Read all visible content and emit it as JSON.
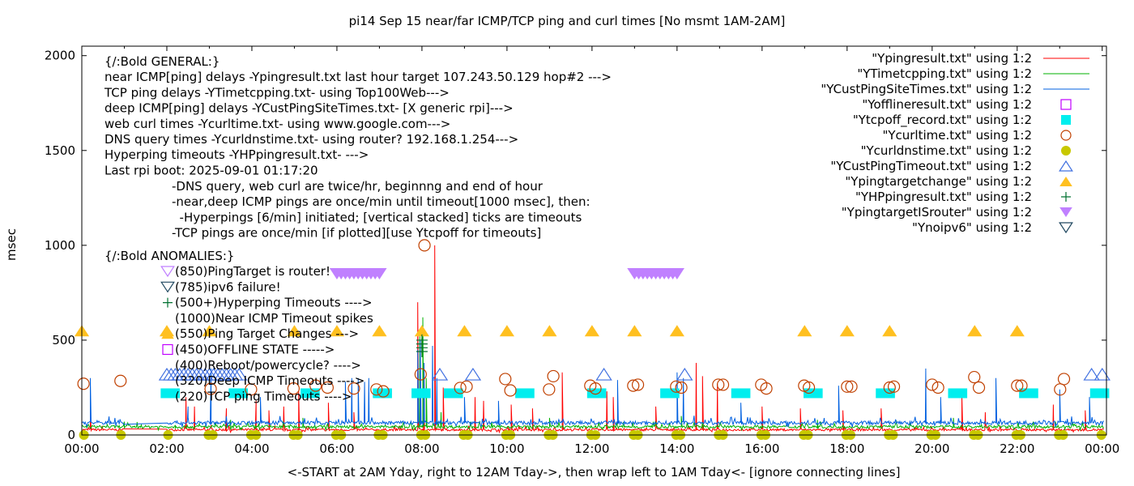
{
  "chart_data": {
    "type": "line",
    "title": "pi14 Sep 15  near/far ICMP/TCP ping and curl times [No msmt 1AM-2AM]",
    "xlabel": "<-START at 2AM Yday, right to 12AM Tday->, then wrap left to 1AM Tday<- [ignore connecting lines]",
    "ylabel": "msec",
    "xlim": [
      0,
      24.1
    ],
    "ylim": [
      0,
      2050
    ],
    "x_unit": "hours",
    "x_ticks": [
      {
        "v": 0,
        "label": "00:00"
      },
      {
        "v": 2,
        "label": "02:00"
      },
      {
        "v": 4,
        "label": "04:00"
      },
      {
        "v": 6,
        "label": "06:00"
      },
      {
        "v": 8,
        "label": "08:00"
      },
      {
        "v": 10,
        "label": "10:00"
      },
      {
        "v": 12,
        "label": "12:00"
      },
      {
        "v": 14,
        "label": "14:00"
      },
      {
        "v": 16,
        "label": "16:00"
      },
      {
        "v": 18,
        "label": "18:00"
      },
      {
        "v": 20,
        "label": "20:00"
      },
      {
        "v": 22,
        "label": "22:00"
      },
      {
        "v": 24,
        "label": "00:00"
      }
    ],
    "y_ticks": [
      {
        "v": 0,
        "label": "0"
      },
      {
        "v": 500,
        "label": "500"
      },
      {
        "v": 1000,
        "label": "1000"
      },
      {
        "v": 1500,
        "label": "1500"
      },
      {
        "v": 2000,
        "label": "2000"
      }
    ],
    "grid": false,
    "legend_placement": "top-right",
    "series": [
      {
        "name": "\"Ypingresult.txt\" using 1:2",
        "style": "line",
        "color": "#ff0000",
        "baseline": 25,
        "jitter": 12,
        "spikes": [
          [
            0.2,
            120
          ],
          [
            2.45,
            200
          ],
          [
            2.65,
            150
          ],
          [
            3.4,
            140
          ],
          [
            4.1,
            180
          ],
          [
            4.4,
            130
          ],
          [
            4.75,
            150
          ],
          [
            5.1,
            230
          ],
          [
            5.8,
            170
          ],
          [
            6.4,
            120
          ],
          [
            7.9,
            700
          ],
          [
            8.05,
            320
          ],
          [
            8.3,
            1000
          ],
          [
            8.5,
            250
          ],
          [
            9.25,
            200
          ],
          [
            9.45,
            180
          ],
          [
            10.1,
            160
          ],
          [
            10.6,
            140
          ],
          [
            11.3,
            330
          ],
          [
            12.35,
            230
          ],
          [
            12.5,
            200
          ],
          [
            13.5,
            150
          ],
          [
            14.45,
            380
          ],
          [
            14.6,
            310
          ],
          [
            14.95,
            270
          ],
          [
            16.0,
            150
          ],
          [
            16.9,
            140
          ],
          [
            17.9,
            130
          ],
          [
            18.8,
            140
          ],
          [
            20.7,
            200
          ],
          [
            21.25,
            120
          ],
          [
            22.85,
            160
          ],
          [
            23.6,
            130
          ]
        ]
      },
      {
        "name": "\"YTimetcpping.txt\" using 1:2",
        "style": "line",
        "color": "#00b000",
        "baseline": 40,
        "jitter": 15,
        "spikes": [
          [
            1.0,
            70
          ],
          [
            1.3,
            60
          ],
          [
            2.2,
            50
          ],
          [
            3.5,
            80
          ],
          [
            5.2,
            90
          ],
          [
            7.95,
            520
          ],
          [
            8.02,
            620
          ],
          [
            8.1,
            300
          ],
          [
            8.45,
            120
          ],
          [
            11.0,
            90
          ],
          [
            14.1,
            100
          ],
          [
            17.3,
            80
          ],
          [
            20.5,
            90
          ],
          [
            22.9,
            70
          ]
        ]
      },
      {
        "name": "\"YCustPingSiteTimes.txt\" using 1:2",
        "style": "line",
        "color": "#0060e0",
        "baseline": 60,
        "jitter": 20,
        "spikes": [
          [
            0.2,
            300
          ],
          [
            2.5,
            150
          ],
          [
            3.04,
            350
          ],
          [
            4.2,
            200
          ],
          [
            6.2,
            280
          ],
          [
            6.35,
            300
          ],
          [
            6.5,
            300
          ],
          [
            6.65,
            280
          ],
          [
            6.75,
            300
          ],
          [
            7.9,
            450
          ],
          [
            7.96,
            500
          ],
          [
            8.05,
            380
          ],
          [
            8.25,
            470
          ],
          [
            8.35,
            300
          ],
          [
            9.0,
            200
          ],
          [
            9.8,
            180
          ],
          [
            12.6,
            290
          ],
          [
            14.0,
            330
          ],
          [
            14.15,
            300
          ],
          [
            15.5,
            170
          ],
          [
            17.8,
            260
          ],
          [
            19.85,
            350
          ],
          [
            20.2,
            200
          ],
          [
            21.5,
            300
          ],
          [
            23.0,
            240
          ],
          [
            23.7,
            200
          ]
        ]
      }
    ],
    "points": [
      {
        "name": "\"Yofflineresult.txt\" using 1:2",
        "marker": "open-square",
        "color": "#c000ff",
        "points": []
      },
      {
        "name": "\"Ytcpoff_record.txt\" using 1:2",
        "marker": "filled-square",
        "color": "#00eeee",
        "run_width_hours": 0.45,
        "points": [
          [
            2.08,
            220
          ],
          [
            3.68,
            220
          ],
          [
            5.37,
            220
          ],
          [
            7.07,
            220
          ],
          [
            7.98,
            220
          ],
          [
            8.74,
            220
          ],
          [
            10.42,
            220
          ],
          [
            12.11,
            220
          ],
          [
            13.83,
            220
          ],
          [
            15.5,
            220
          ],
          [
            17.2,
            220
          ],
          [
            18.9,
            220
          ],
          [
            20.6,
            220
          ],
          [
            22.27,
            220
          ],
          [
            23.94,
            220
          ]
        ]
      },
      {
        "name": "\"Ycurltime.txt\" using 1:2",
        "marker": "open-circle",
        "color": "#c04000",
        "points": [
          [
            0.04,
            270
          ],
          [
            0.91,
            285
          ],
          [
            3.03,
            243
          ],
          [
            3.98,
            240
          ],
          [
            4.98,
            245
          ],
          [
            5.5,
            260
          ],
          [
            5.78,
            250
          ],
          [
            6.4,
            245
          ],
          [
            6.93,
            240
          ],
          [
            7.09,
            230
          ],
          [
            7.97,
            320
          ],
          [
            8.06,
            1000
          ],
          [
            8.9,
            248
          ],
          [
            9.05,
            255
          ],
          [
            9.96,
            295
          ],
          [
            10.08,
            235
          ],
          [
            10.99,
            240
          ],
          [
            11.09,
            310
          ],
          [
            11.96,
            260
          ],
          [
            12.08,
            245
          ],
          [
            12.97,
            260
          ],
          [
            13.08,
            265
          ],
          [
            13.98,
            255
          ],
          [
            14.1,
            250
          ],
          [
            14.97,
            265
          ],
          [
            15.08,
            265
          ],
          [
            15.98,
            265
          ],
          [
            16.1,
            245
          ],
          [
            16.99,
            260
          ],
          [
            17.1,
            250
          ],
          [
            18.0,
            255
          ],
          [
            18.1,
            255
          ],
          [
            19.0,
            250
          ],
          [
            19.1,
            255
          ],
          [
            20.0,
            265
          ],
          [
            20.14,
            250
          ],
          [
            20.99,
            305
          ],
          [
            21.1,
            250
          ],
          [
            22.0,
            260
          ],
          [
            22.1,
            260
          ],
          [
            23.01,
            240
          ],
          [
            23.1,
            295
          ]
        ]
      },
      {
        "name": "\"Ycurldnstime.txt\" using 1:2",
        "marker": "filled-circle",
        "color": "#c8c800",
        "points": [
          [
            0.05,
            0
          ],
          [
            0.92,
            0
          ],
          [
            2.03,
            0
          ],
          [
            2.98,
            0
          ],
          [
            3.08,
            0
          ],
          [
            3.98,
            0
          ],
          [
            4.1,
            0
          ],
          [
            4.98,
            0
          ],
          [
            5.08,
            0
          ],
          [
            5.98,
            0
          ],
          [
            6.1,
            0
          ],
          [
            6.98,
            0
          ],
          [
            7.08,
            0
          ],
          [
            7.98,
            0
          ],
          [
            8.08,
            0
          ],
          [
            8.98,
            0
          ],
          [
            9.08,
            0
          ],
          [
            9.98,
            0
          ],
          [
            10.08,
            0
          ],
          [
            10.98,
            0
          ],
          [
            11.08,
            0
          ],
          [
            11.98,
            0
          ],
          [
            12.08,
            0
          ],
          [
            12.98,
            0
          ],
          [
            13.08,
            0
          ],
          [
            13.98,
            0
          ],
          [
            14.08,
            0
          ],
          [
            14.98,
            0
          ],
          [
            15.08,
            0
          ],
          [
            15.98,
            0
          ],
          [
            16.08,
            0
          ],
          [
            16.98,
            0
          ],
          [
            17.08,
            0
          ],
          [
            17.98,
            0
          ],
          [
            18.08,
            0
          ],
          [
            18.98,
            0
          ],
          [
            19.08,
            0
          ],
          [
            19.98,
            0
          ],
          [
            20.08,
            0
          ],
          [
            20.98,
            0
          ],
          [
            21.08,
            0
          ],
          [
            21.98,
            0
          ],
          [
            22.08,
            0
          ],
          [
            22.98,
            0
          ],
          [
            23.08,
            0
          ],
          [
            23.98,
            0
          ]
        ]
      },
      {
        "name": "\"YCustPingTimeout.txt\" using 1:2",
        "marker": "open-triangle-up",
        "color": "#4070e0",
        "points": [
          [
            2.0,
            320
          ],
          [
            2.1,
            320
          ],
          [
            2.2,
            320
          ],
          [
            2.3,
            320
          ],
          [
            2.4,
            320
          ],
          [
            2.5,
            320
          ],
          [
            2.6,
            320
          ],
          [
            2.7,
            320
          ],
          [
            2.8,
            320
          ],
          [
            2.9,
            320
          ],
          [
            3.0,
            320
          ],
          [
            3.1,
            320
          ],
          [
            3.2,
            320
          ],
          [
            3.3,
            320
          ],
          [
            3.4,
            320
          ],
          [
            3.5,
            320
          ],
          [
            3.6,
            320
          ],
          [
            3.7,
            320
          ],
          [
            8.42,
            320
          ],
          [
            9.2,
            320
          ],
          [
            12.28,
            320
          ],
          [
            14.18,
            320
          ],
          [
            23.75,
            320
          ],
          [
            24.0,
            320
          ]
        ]
      },
      {
        "name": "\"Ypingtargetchange\" using 1:2",
        "marker": "filled-triangle-up",
        "color": "#ffc020",
        "points": [
          [
            0,
            550
          ],
          [
            2,
            550
          ],
          [
            3,
            550
          ],
          [
            5,
            550
          ],
          [
            6,
            550
          ],
          [
            7,
            550
          ],
          [
            8,
            550
          ],
          [
            9,
            550
          ],
          [
            10,
            550
          ],
          [
            11,
            550
          ],
          [
            12,
            550
          ],
          [
            13,
            550
          ],
          [
            14,
            550
          ],
          [
            17,
            550
          ],
          [
            18,
            550
          ],
          [
            19,
            550
          ],
          [
            21,
            550
          ],
          [
            22,
            550
          ]
        ]
      },
      {
        "name": "\"YHPpingresult.txt\" using 1:2",
        "marker": "plus",
        "color": "#007030",
        "points": [
          [
            8.0,
            500
          ],
          [
            8.0,
            480
          ],
          [
            8.0,
            460
          ],
          [
            8.0,
            440
          ]
        ]
      },
      {
        "name": "\"YpingtargetISrouter\" using 1:2",
        "marker": "filled-triangle-down",
        "color": "#c080ff",
        "points": [
          [
            6.0,
            850
          ],
          [
            6.1,
            850
          ],
          [
            6.2,
            850
          ],
          [
            6.3,
            850
          ],
          [
            6.4,
            850
          ],
          [
            6.5,
            850
          ],
          [
            6.6,
            850
          ],
          [
            6.7,
            850
          ],
          [
            6.8,
            850
          ],
          [
            6.9,
            850
          ],
          [
            7.0,
            850
          ],
          [
            13.0,
            850
          ],
          [
            13.1,
            850
          ],
          [
            13.2,
            850
          ],
          [
            13.3,
            850
          ],
          [
            13.4,
            850
          ],
          [
            13.5,
            850
          ],
          [
            13.6,
            850
          ],
          [
            13.7,
            850
          ],
          [
            13.8,
            850
          ],
          [
            13.9,
            850
          ],
          [
            14.0,
            850
          ]
        ]
      },
      {
        "name": "\"Ynoipv6\" using 1:2",
        "marker": "open-triangle-down",
        "color": "#204860",
        "points": []
      }
    ],
    "annotations": {
      "general": [
        "{/:Bold GENERAL:}",
        "near ICMP[ping] delays -Ypingresult.txt last hour target 107.243.50.129 hop#2 --->",
        "TCP ping delays -YTimetcpping.txt- using Top100Web--->",
        "deep ICMP[ping] delays -YCustPingSiteTimes.txt- [X generic rpi]--->",
        "web curl times -Ycurltime.txt- using www.google.com--->",
        "DNS query times -Ycurldnstime.txt- using router? 192.168.1.254--->",
        "Hyperping timeouts -YHPpingresult.txt- --->",
        "Last rpi boot: 2025-09-01 01:17:20"
      ],
      "notes": [
        "-DNS query, web curl are twice/hr, beginnng and end of hour",
        "-near,deep ICMP pings are once/min until timeout[1000 msec], then:",
        "  -Hyperpings [6/min] initiated; [vertical stacked] ticks are timeouts",
        "-TCP pings are once/min [if plotted][use Ytcpoff for timeouts]"
      ],
      "anomalies_title": "{/:Bold ANOMALIES:}",
      "anomalies": [
        {
          "text": "(850)PingTarget is router!",
          "marker": "filled-triangle-down-open",
          "color": "#c080ff"
        },
        {
          "text": "(785)ipv6 failure!",
          "marker": "open-triangle-down",
          "color": "#204860"
        },
        {
          "text": "(500+)Hyperping Timeouts ---->",
          "marker": "plus",
          "color": "#007030"
        },
        {
          "text": "(1000)Near ICMP Timeout spikes",
          "marker": "",
          "color": ""
        },
        {
          "text": "(550)Ping Target Changes --->",
          "marker": "filled-triangle-up",
          "color": "#ffc020"
        },
        {
          "text": "(450)OFFLINE STATE ----->",
          "marker": "open-square",
          "color": "#c000ff"
        },
        {
          "text": "(400)Reboot/powercycle? ---->",
          "marker": "",
          "color": ""
        },
        {
          "text": "(320)Deep ICMP Timeouts ---->",
          "marker": "",
          "color": ""
        },
        {
          "text": "(220)TCP ping Timeouts ---->",
          "marker": "",
          "color": ""
        }
      ]
    }
  }
}
